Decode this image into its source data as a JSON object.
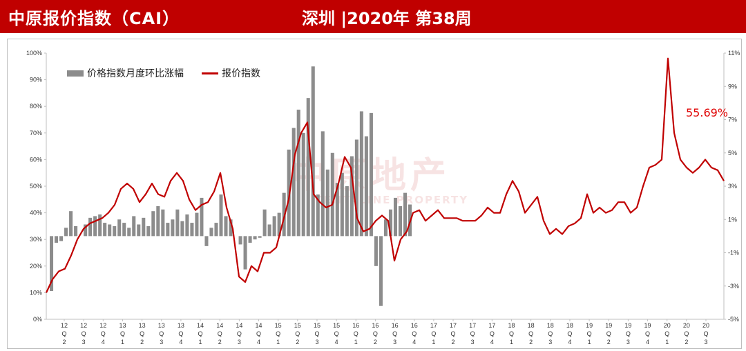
{
  "header": {
    "title": "中原报价指数（CAI）",
    "subtitle": "深圳 |2020年  第38周"
  },
  "watermark": {
    "cn": "中原地产",
    "en": "CENTALINE PROPERTY"
  },
  "annotation": {
    "text": "55.69%",
    "color": "#e00000"
  },
  "colors": {
    "header": "#c00000",
    "line": "#c00000",
    "bar": "#8c8c8c"
  },
  "chart_data": {
    "type": "bar+line",
    "legend": [
      {
        "name": "价格指数月度环比涨幅",
        "kind": "bar",
        "axis": "right"
      },
      {
        "name": "报价指数",
        "kind": "line",
        "axis": "left"
      }
    ],
    "legend_position": "top-left",
    "grid": false,
    "y_left": {
      "min": 0,
      "max": 100,
      "step": 10,
      "unit": "%",
      "ticks": [
        "0%",
        "10%",
        "20%",
        "30%",
        "40%",
        "50%",
        "60%",
        "70%",
        "80%",
        "90%",
        "100%"
      ]
    },
    "y_right": {
      "min": -5,
      "max": 11,
      "step": 2,
      "unit": "%",
      "ticks": [
        "-5%",
        "-3%",
        "-1%",
        "1%",
        "3%",
        "5%",
        "7%",
        "9%",
        "11%"
      ]
    },
    "x_labels": [
      {
        "year": "12",
        "q": "2"
      },
      {
        "year": "12",
        "q": "3"
      },
      {
        "year": "12",
        "q": "4"
      },
      {
        "year": "13",
        "q": "1"
      },
      {
        "year": "13",
        "q": "2"
      },
      {
        "year": "13",
        "q": "3"
      },
      {
        "year": "13",
        "q": "4"
      },
      {
        "year": "14",
        "q": "1"
      },
      {
        "year": "14",
        "q": "2"
      },
      {
        "year": "14",
        "q": "3"
      },
      {
        "year": "14",
        "q": "4"
      },
      {
        "year": "15",
        "q": "1"
      },
      {
        "year": "15",
        "q": "2"
      },
      {
        "year": "15",
        "q": "3"
      },
      {
        "year": "15",
        "q": "4"
      },
      {
        "year": "16",
        "q": "1"
      },
      {
        "year": "16",
        "q": "2"
      },
      {
        "year": "16",
        "q": "3"
      },
      {
        "year": "16",
        "q": "4"
      },
      {
        "year": "17",
        "q": "1"
      },
      {
        "year": "17",
        "q": "2"
      },
      {
        "year": "17",
        "q": "3"
      },
      {
        "year": "17",
        "q": "4"
      },
      {
        "year": "18",
        "q": "1"
      },
      {
        "year": "18",
        "q": "2"
      },
      {
        "year": "18",
        "q": "3"
      },
      {
        "year": "18",
        "q": "4"
      },
      {
        "year": "19",
        "q": "1"
      },
      {
        "year": "19",
        "q": "2"
      },
      {
        "year": "19",
        "q": "3"
      },
      {
        "year": "19",
        "q": "4"
      },
      {
        "year": "20",
        "q": "1"
      },
      {
        "year": "20",
        "q": "2"
      },
      {
        "year": "20",
        "q": "3"
      }
    ],
    "bar_monthly_change_pct": [
      -3.3,
      -0.4,
      -0.3,
      0.5,
      1.5,
      0.6,
      0.0,
      0.7,
      1.1,
      1.2,
      1.3,
      0.8,
      0.7,
      0.6,
      1.0,
      0.8,
      0.5,
      1.2,
      0.7,
      1.1,
      0.6,
      1.5,
      1.8,
      1.6,
      0.8,
      1.0,
      1.6,
      0.9,
      1.3,
      0.8,
      1.4,
      2.3,
      -0.6,
      0.5,
      0.8,
      2.5,
      1.2,
      1.0,
      0.0,
      -0.5,
      -2.0,
      -0.4,
      -0.2,
      -0.1,
      1.6,
      0.7,
      1.2,
      1.4,
      2.6,
      5.2,
      6.5,
      7.6,
      6.2,
      8.3,
      10.2,
      2.5,
      6.3,
      4.0,
      5.0,
      3.2,
      3.8,
      3.0,
      4.8,
      5.8,
      7.5,
      6.0,
      7.4,
      -1.8,
      -4.2,
      1.0,
      1.6,
      2.3,
      1.8,
      2.6,
      1.9
    ],
    "line_index_pct_monthly": [
      10,
      15,
      18,
      19,
      24,
      30,
      34,
      36,
      37,
      38,
      40,
      43,
      49,
      51,
      49,
      44,
      47,
      51,
      47,
      46,
      52,
      55,
      52,
      45,
      41,
      43,
      44,
      48,
      55,
      42,
      34,
      16,
      14,
      20,
      18,
      25,
      25,
      27,
      36,
      45,
      62,
      70,
      74,
      47,
      44,
      42,
      43,
      51,
      61,
      57,
      38,
      33,
      34,
      37,
      39,
      37,
      22,
      30,
      33,
      40,
      41,
      37,
      39,
      41,
      38,
      38,
      38,
      37,
      37,
      37,
      39,
      42,
      40,
      40,
      47,
      52,
      48,
      40,
      43,
      46,
      37,
      32,
      34,
      32,
      35,
      36,
      38,
      47,
      40,
      42,
      40,
      41,
      44,
      44,
      40,
      42,
      50,
      57,
      58,
      60,
      98,
      70,
      60,
      57,
      55,
      57,
      60,
      57,
      56,
      52
    ]
  }
}
